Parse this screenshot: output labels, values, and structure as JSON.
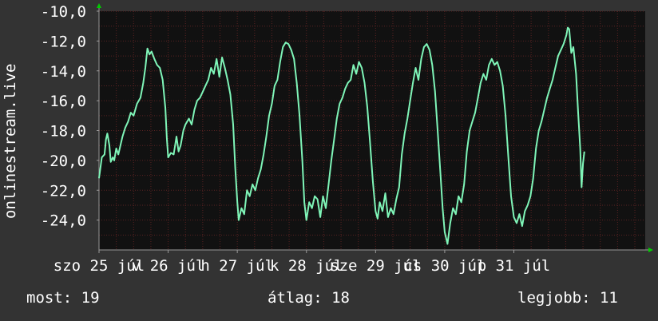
{
  "chart_data": {
    "type": "line",
    "ylabel": "onlinestream.live",
    "ylim": [
      -26,
      -10
    ],
    "yticks": [
      -10,
      -12,
      -14,
      -16,
      -18,
      -20,
      -22,
      -24
    ],
    "ytick_labels": [
      "-10,0",
      "-12,0",
      "-14,0",
      "-16,0",
      "-18,0",
      "-20,0",
      "-22,0",
      "-24,0"
    ],
    "xlim": [
      0,
      7.9
    ],
    "xticks": [
      {
        "x": 0.0,
        "label": "szo 25 júl"
      },
      {
        "x": 1.0,
        "label": "v 26 júl"
      },
      {
        "x": 2.0,
        "label": "h 27 júl"
      },
      {
        "x": 3.0,
        "label": "k 28 júl"
      },
      {
        "x": 4.0,
        "label": "sze 29 júl"
      },
      {
        "x": 5.0,
        "label": "cs 30 júl"
      },
      {
        "x": 6.0,
        "label": "p 31 júl"
      }
    ],
    "grid": true,
    "series": [
      {
        "color": "#7ff5b8",
        "points": [
          [
            0.0,
            -21.2
          ],
          [
            0.04,
            -19.8
          ],
          [
            0.08,
            -19.6
          ],
          [
            0.1,
            -18.6
          ],
          [
            0.12,
            -18.2
          ],
          [
            0.15,
            -19.0
          ],
          [
            0.17,
            -20.1
          ],
          [
            0.2,
            -19.8
          ],
          [
            0.22,
            -20.0
          ],
          [
            0.25,
            -19.2
          ],
          [
            0.28,
            -19.6
          ],
          [
            0.31,
            -19.0
          ],
          [
            0.34,
            -18.4
          ],
          [
            0.38,
            -17.8
          ],
          [
            0.42,
            -17.4
          ],
          [
            0.46,
            -16.8
          ],
          [
            0.5,
            -17.0
          ],
          [
            0.55,
            -16.2
          ],
          [
            0.6,
            -15.8
          ],
          [
            0.64,
            -14.8
          ],
          [
            0.67,
            -13.8
          ],
          [
            0.7,
            -12.5
          ],
          [
            0.73,
            -12.9
          ],
          [
            0.76,
            -12.7
          ],
          [
            0.8,
            -13.2
          ],
          [
            0.84,
            -13.6
          ],
          [
            0.88,
            -13.8
          ],
          [
            0.92,
            -14.6
          ],
          [
            0.96,
            -16.5
          ],
          [
            0.98,
            -18.5
          ],
          [
            1.0,
            -19.8
          ],
          [
            1.04,
            -19.5
          ],
          [
            1.08,
            -19.6
          ],
          [
            1.12,
            -18.4
          ],
          [
            1.15,
            -19.4
          ],
          [
            1.18,
            -19.0
          ],
          [
            1.22,
            -18.0
          ],
          [
            1.25,
            -17.6
          ],
          [
            1.3,
            -17.2
          ],
          [
            1.34,
            -17.6
          ],
          [
            1.38,
            -16.6
          ],
          [
            1.42,
            -16.0
          ],
          [
            1.46,
            -15.8
          ],
          [
            1.5,
            -15.4
          ],
          [
            1.54,
            -15.0
          ],
          [
            1.58,
            -14.6
          ],
          [
            1.62,
            -13.8
          ],
          [
            1.66,
            -14.2
          ],
          [
            1.7,
            -13.2
          ],
          [
            1.74,
            -14.4
          ],
          [
            1.78,
            -13.1
          ],
          [
            1.82,
            -13.8
          ],
          [
            1.86,
            -14.6
          ],
          [
            1.9,
            -15.6
          ],
          [
            1.94,
            -17.6
          ],
          [
            1.97,
            -20.5
          ],
          [
            2.0,
            -22.8
          ],
          [
            2.02,
            -24.0
          ],
          [
            2.06,
            -23.2
          ],
          [
            2.1,
            -23.6
          ],
          [
            2.14,
            -22.0
          ],
          [
            2.18,
            -22.4
          ],
          [
            2.22,
            -21.6
          ],
          [
            2.26,
            -22.0
          ],
          [
            2.3,
            -21.2
          ],
          [
            2.34,
            -20.6
          ],
          [
            2.38,
            -19.6
          ],
          [
            2.42,
            -18.4
          ],
          [
            2.46,
            -17.0
          ],
          [
            2.5,
            -16.2
          ],
          [
            2.54,
            -15.0
          ],
          [
            2.58,
            -14.6
          ],
          [
            2.62,
            -13.4
          ],
          [
            2.66,
            -12.4
          ],
          [
            2.7,
            -12.1
          ],
          [
            2.74,
            -12.2
          ],
          [
            2.78,
            -12.6
          ],
          [
            2.82,
            -13.2
          ],
          [
            2.86,
            -14.8
          ],
          [
            2.9,
            -17.0
          ],
          [
            2.94,
            -20.0
          ],
          [
            2.97,
            -22.8
          ],
          [
            3.0,
            -24.0
          ],
          [
            3.04,
            -22.8
          ],
          [
            3.08,
            -23.2
          ],
          [
            3.12,
            -22.4
          ],
          [
            3.16,
            -22.6
          ],
          [
            3.2,
            -23.8
          ],
          [
            3.24,
            -22.4
          ],
          [
            3.28,
            -23.2
          ],
          [
            3.32,
            -21.6
          ],
          [
            3.36,
            -20.0
          ],
          [
            3.4,
            -18.6
          ],
          [
            3.44,
            -17.2
          ],
          [
            3.48,
            -16.2
          ],
          [
            3.52,
            -15.8
          ],
          [
            3.56,
            -15.2
          ],
          [
            3.6,
            -14.8
          ],
          [
            3.64,
            -14.6
          ],
          [
            3.68,
            -13.6
          ],
          [
            3.72,
            -14.2
          ],
          [
            3.76,
            -13.4
          ],
          [
            3.8,
            -13.8
          ],
          [
            3.84,
            -14.8
          ],
          [
            3.88,
            -16.4
          ],
          [
            3.92,
            -18.8
          ],
          [
            3.96,
            -21.4
          ],
          [
            4.0,
            -23.4
          ],
          [
            4.03,
            -23.9
          ],
          [
            4.06,
            -22.8
          ],
          [
            4.1,
            -23.4
          ],
          [
            4.14,
            -22.2
          ],
          [
            4.18,
            -23.8
          ],
          [
            4.22,
            -23.2
          ],
          [
            4.26,
            -23.6
          ],
          [
            4.3,
            -22.6
          ],
          [
            4.34,
            -21.8
          ],
          [
            4.38,
            -19.6
          ],
          [
            4.42,
            -18.2
          ],
          [
            4.46,
            -17.2
          ],
          [
            4.5,
            -16.0
          ],
          [
            4.54,
            -14.8
          ],
          [
            4.58,
            -13.8
          ],
          [
            4.62,
            -14.6
          ],
          [
            4.66,
            -13.2
          ],
          [
            4.7,
            -12.4
          ],
          [
            4.74,
            -12.2
          ],
          [
            4.78,
            -12.6
          ],
          [
            4.82,
            -13.6
          ],
          [
            4.86,
            -15.4
          ],
          [
            4.9,
            -18.2
          ],
          [
            4.94,
            -21.0
          ],
          [
            4.97,
            -23.2
          ],
          [
            5.0,
            -24.8
          ],
          [
            5.04,
            -25.6
          ],
          [
            5.08,
            -24.2
          ],
          [
            5.12,
            -23.2
          ],
          [
            5.16,
            -23.6
          ],
          [
            5.2,
            -22.4
          ],
          [
            5.24,
            -22.8
          ],
          [
            5.28,
            -21.6
          ],
          [
            5.32,
            -19.4
          ],
          [
            5.36,
            -18.0
          ],
          [
            5.4,
            -17.4
          ],
          [
            5.44,
            -16.8
          ],
          [
            5.48,
            -15.8
          ],
          [
            5.52,
            -14.8
          ],
          [
            5.56,
            -14.2
          ],
          [
            5.6,
            -14.6
          ],
          [
            5.64,
            -13.6
          ],
          [
            5.68,
            -13.2
          ],
          [
            5.72,
            -13.6
          ],
          [
            5.76,
            -13.4
          ],
          [
            5.8,
            -14.0
          ],
          [
            5.84,
            -15.0
          ],
          [
            5.88,
            -17.0
          ],
          [
            5.92,
            -19.8
          ],
          [
            5.96,
            -22.4
          ],
          [
            6.0,
            -23.8
          ],
          [
            6.04,
            -24.2
          ],
          [
            6.08,
            -23.6
          ],
          [
            6.12,
            -24.4
          ],
          [
            6.16,
            -23.4
          ],
          [
            6.2,
            -23.0
          ],
          [
            6.24,
            -22.4
          ],
          [
            6.28,
            -21.2
          ],
          [
            6.32,
            -19.2
          ],
          [
            6.36,
            -18.0
          ],
          [
            6.4,
            -17.4
          ],
          [
            6.44,
            -16.6
          ],
          [
            6.48,
            -15.8
          ],
          [
            6.52,
            -15.2
          ],
          [
            6.56,
            -14.6
          ],
          [
            6.6,
            -13.8
          ],
          [
            6.64,
            -13.0
          ],
          [
            6.68,
            -12.6
          ],
          [
            6.72,
            -12.2
          ],
          [
            6.76,
            -11.6
          ],
          [
            6.78,
            -11.1
          ],
          [
            6.8,
            -11.2
          ],
          [
            6.83,
            -12.8
          ],
          [
            6.86,
            -12.4
          ],
          [
            6.9,
            -14.2
          ],
          [
            6.93,
            -16.8
          ],
          [
            6.96,
            -19.2
          ],
          [
            6.98,
            -21.8
          ],
          [
            7.0,
            -20.2
          ],
          [
            7.02,
            -19.4
          ]
        ]
      }
    ]
  },
  "stats": {
    "current": "most: 19",
    "average": "átlag: 18",
    "best": "legjobb: 11"
  },
  "colors": {
    "background": "#333333",
    "plot_background": "#111111",
    "grid": "#5a2222",
    "axis": "#9a9a9a",
    "arrow": "#00cc00",
    "line": "#7ff5b8"
  }
}
